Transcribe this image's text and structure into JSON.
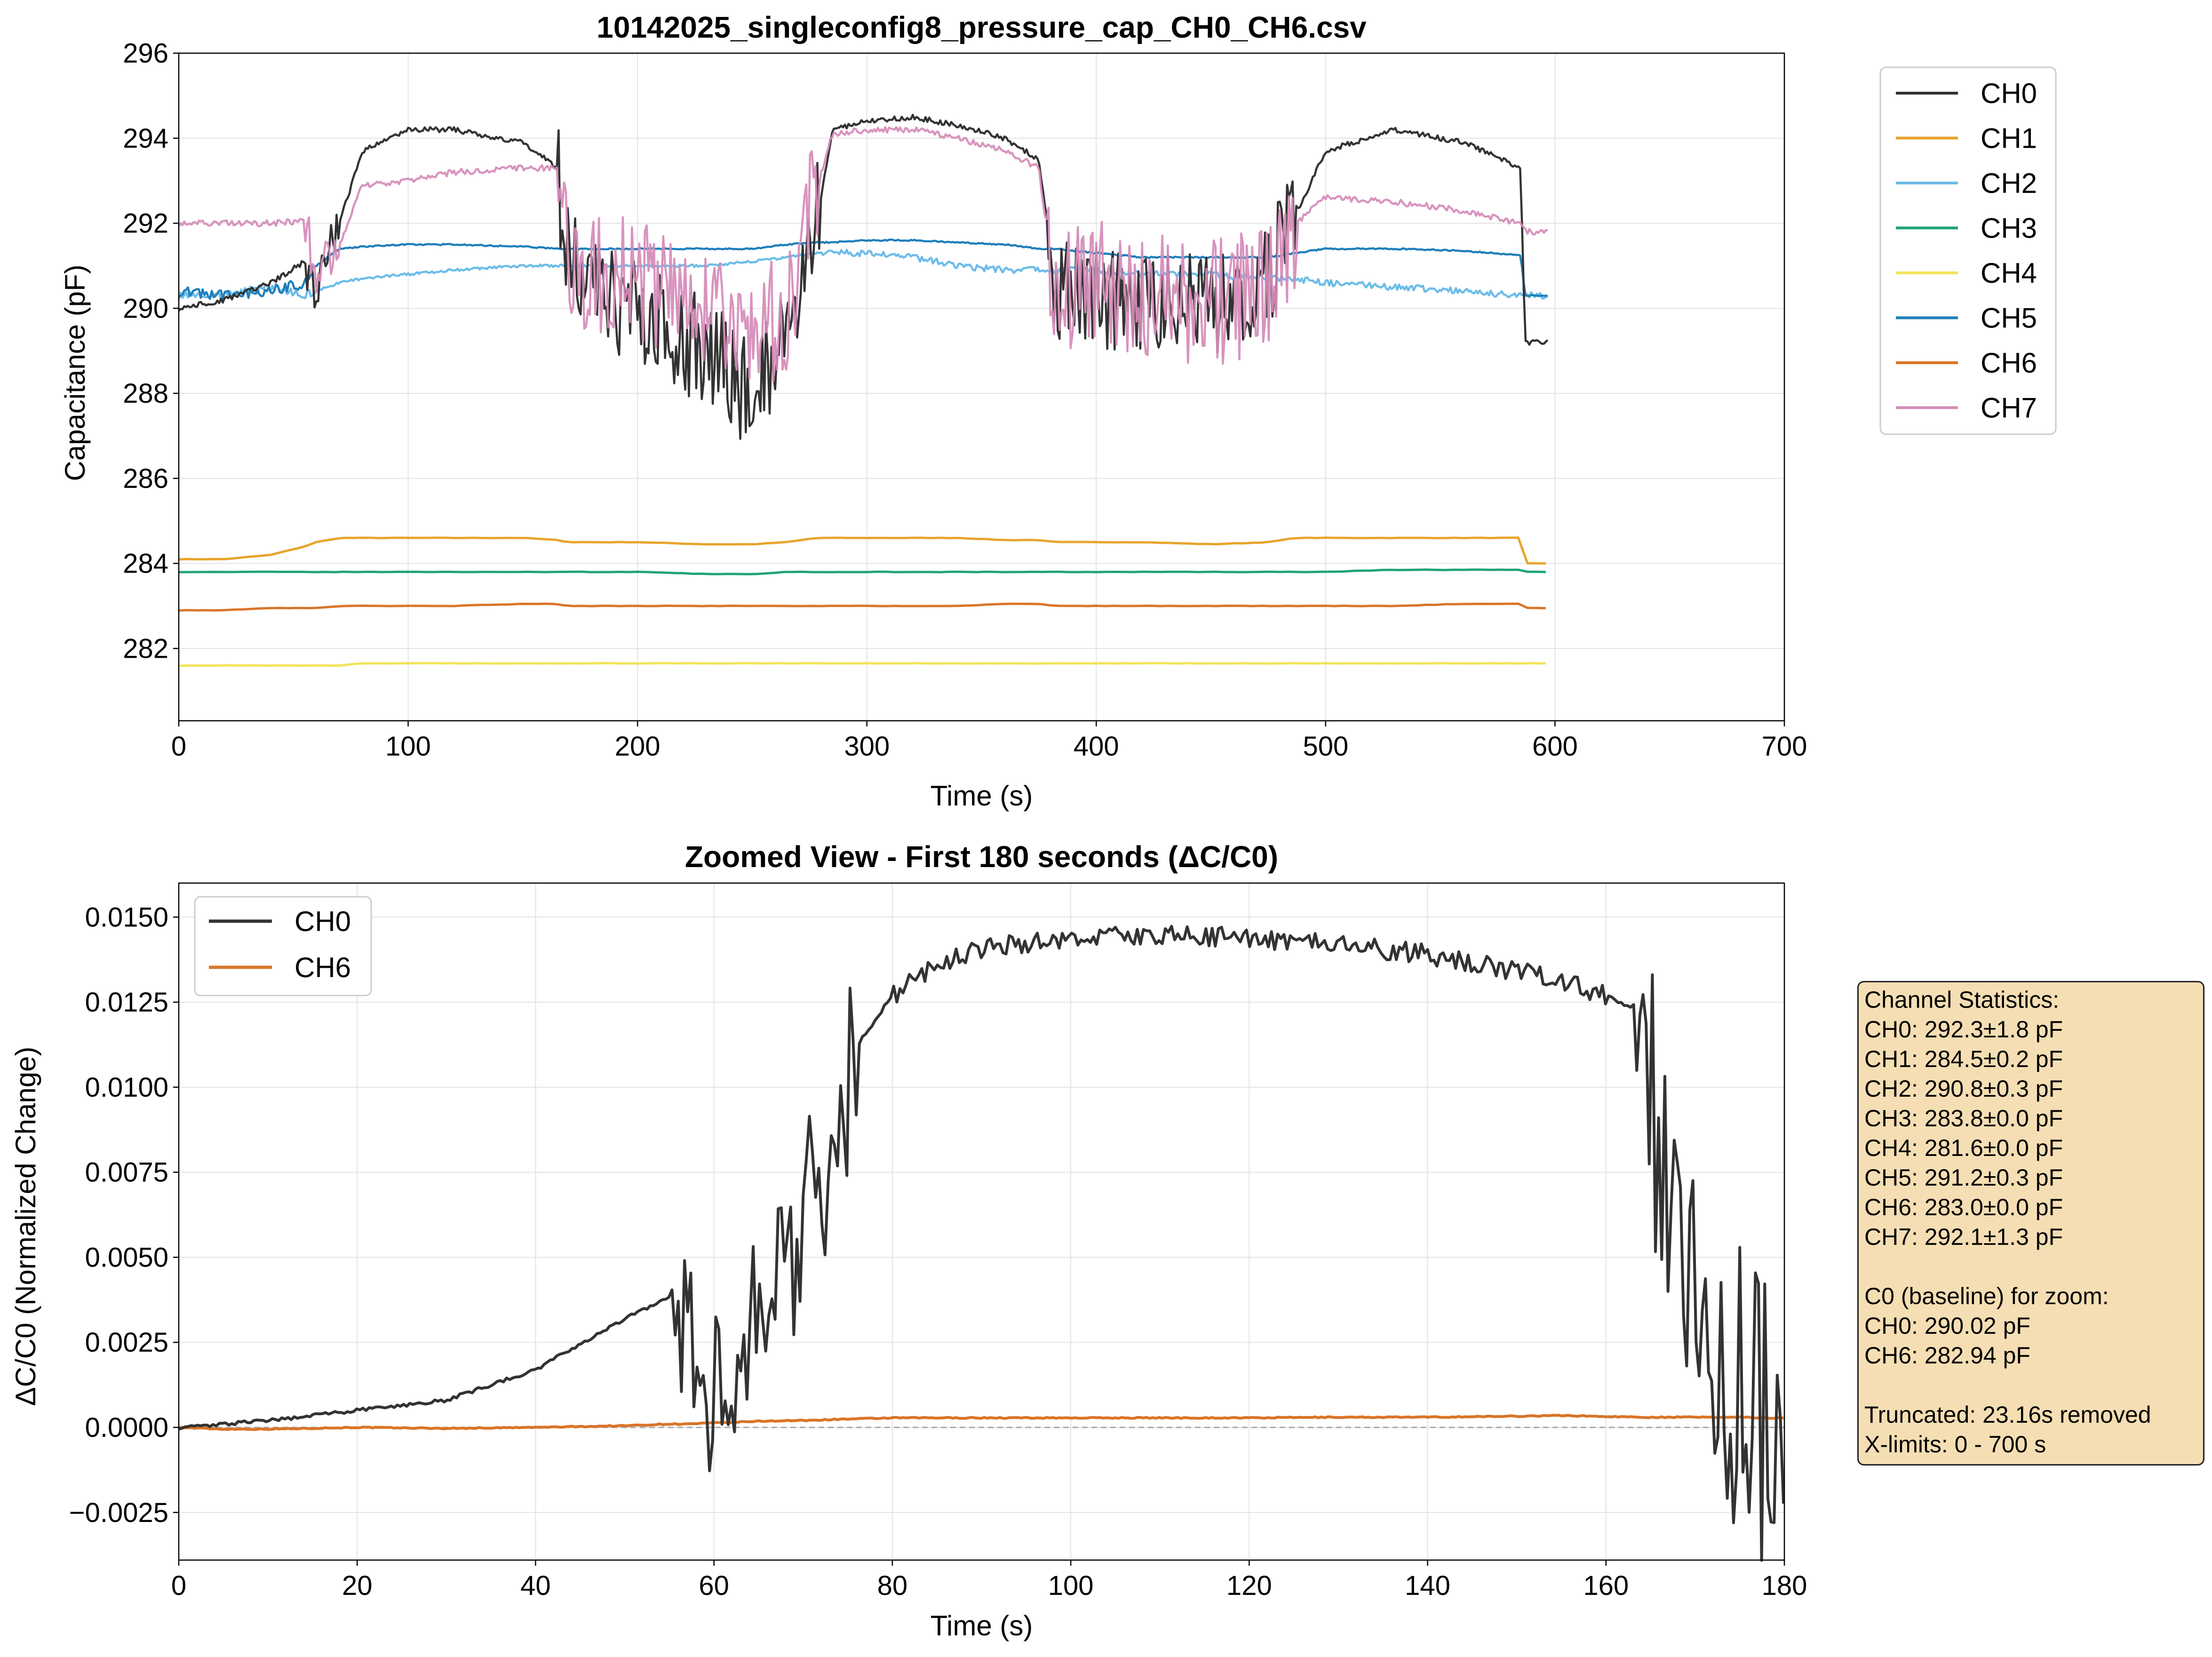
{
  "colors": {
    "CH0": "#333333",
    "CH1": "#E8A42C",
    "CH2": "#6CBCE8",
    "CH3": "#22A27A",
    "CH4": "#F2E45A",
    "CH5": "#1F7FBB",
    "CH6": "#D97528",
    "CH7": "#D58BB8"
  },
  "chart_data": [
    {
      "type": "line",
      "title": "10142025_singleconfig8_pressure_cap_CH0_CH6.csv",
      "xlabel": "Time (s)",
      "ylabel": "Capacitance (pF)",
      "xlim": [
        0,
        700
      ],
      "ylim": [
        280.3,
        296
      ],
      "xticks": [
        "0",
        "100",
        "200",
        "300",
        "400",
        "500",
        "600",
        "700"
      ],
      "yticks": [
        "282",
        "284",
        "286",
        "288",
        "290",
        "292",
        "294",
        "296"
      ],
      "grid": true,
      "legend": "outside upper right",
      "x": [
        0,
        20,
        40,
        55,
        60,
        70,
        80,
        100,
        120,
        150,
        165,
        170,
        200,
        230,
        250,
        265,
        278,
        285,
        300,
        320,
        340,
        360,
        375,
        382,
        400,
        420,
        450,
        475,
        487,
        500,
        530,
        560,
        585,
        587,
        597
      ],
      "series": [
        {
          "name": "CH0",
          "values": [
            290.0,
            290.2,
            290.6,
            291.1,
            290.4,
            292.0,
            293.7,
            294.2,
            294.2,
            293.9,
            293.3,
            291.0,
            289.8,
            289.0,
            287.9,
            289.6,
            292.0,
            294.2,
            294.4,
            294.5,
            294.3,
            294.0,
            293.5,
            290.5,
            290.2,
            290.0,
            290.2,
            290.7,
            292.2,
            293.7,
            294.2,
            293.9,
            293.3,
            289.2,
            289.2
          ]
        },
        {
          "name": "CH1",
          "values": [
            284.1,
            284.1,
            284.2,
            284.4,
            284.5,
            284.6,
            284.6,
            284.6,
            284.6,
            284.6,
            284.55,
            284.5,
            284.5,
            284.45,
            284.45,
            284.5,
            284.6,
            284.6,
            284.6,
            284.6,
            284.6,
            284.55,
            284.55,
            284.5,
            284.5,
            284.5,
            284.45,
            284.5,
            284.6,
            284.6,
            284.6,
            284.6,
            284.6,
            284.0,
            284.0
          ]
        },
        {
          "name": "CH2",
          "values": [
            290.3,
            290.3,
            290.5,
            290.3,
            290.4,
            290.6,
            290.7,
            290.8,
            290.9,
            291.0,
            291.0,
            291.0,
            291.0,
            291.0,
            291.1,
            291.2,
            291.3,
            291.3,
            291.3,
            291.2,
            291.0,
            290.9,
            290.9,
            290.9,
            290.9,
            290.8,
            290.8,
            290.7,
            290.7,
            290.6,
            290.5,
            290.4,
            290.3,
            290.3,
            290.3
          ]
        },
        {
          "name": "CH3",
          "values": [
            283.8,
            283.8,
            283.8,
            283.8,
            283.8,
            283.8,
            283.8,
            283.8,
            283.8,
            283.8,
            283.8,
            283.8,
            283.8,
            283.75,
            283.75,
            283.8,
            283.8,
            283.8,
            283.8,
            283.8,
            283.8,
            283.8,
            283.8,
            283.8,
            283.8,
            283.8,
            283.8,
            283.8,
            283.8,
            283.8,
            283.85,
            283.85,
            283.85,
            283.8,
            283.8
          ]
        },
        {
          "name": "CH4",
          "values": [
            281.6,
            281.6,
            281.6,
            281.6,
            281.6,
            281.6,
            281.65,
            281.65,
            281.65,
            281.65,
            281.65,
            281.65,
            281.65,
            281.65,
            281.65,
            281.65,
            281.65,
            281.65,
            281.65,
            281.65,
            281.65,
            281.65,
            281.65,
            281.65,
            281.65,
            281.65,
            281.65,
            281.65,
            281.65,
            281.65,
            281.65,
            281.65,
            281.65,
            281.65,
            281.65
          ]
        },
        {
          "name": "CH5",
          "values": [
            290.4,
            290.3,
            290.4,
            290.6,
            291.0,
            291.4,
            291.45,
            291.5,
            291.5,
            291.45,
            291.4,
            291.4,
            291.4,
            291.4,
            291.4,
            291.5,
            291.55,
            291.55,
            291.6,
            291.6,
            291.55,
            291.5,
            291.4,
            291.4,
            291.3,
            291.2,
            291.2,
            291.2,
            291.3,
            291.4,
            291.4,
            291.35,
            291.25,
            290.3,
            290.3
          ]
        },
        {
          "name": "CH6",
          "values": [
            282.9,
            282.9,
            282.95,
            282.95,
            282.95,
            283.0,
            283.0,
            283.0,
            283.0,
            283.05,
            283.05,
            283.0,
            283.0,
            283.0,
            283.0,
            283.0,
            283.0,
            283.0,
            283.0,
            283.0,
            283.0,
            283.05,
            283.05,
            283.0,
            283.0,
            283.0,
            283.0,
            283.0,
            283.0,
            283.0,
            283.0,
            283.05,
            283.05,
            282.95,
            282.95
          ]
        },
        {
          "name": "CH7",
          "values": [
            292.0,
            292.0,
            292.0,
            292.05,
            290.8,
            291.5,
            292.9,
            293.0,
            293.2,
            293.3,
            293.3,
            290.8,
            290.6,
            290.0,
            289.4,
            289.8,
            292.8,
            294.1,
            294.2,
            294.2,
            294.0,
            293.7,
            293.3,
            290.2,
            290.8,
            290.3,
            290.1,
            290.5,
            292.0,
            292.6,
            292.5,
            292.3,
            292.0,
            291.8,
            291.8
          ]
        }
      ]
    },
    {
      "type": "line",
      "title": "Zoomed View - First 180 seconds (ΔC/C0)",
      "xlabel": "Time (s)",
      "ylabel": "ΔC/C0 (Normalized Change)",
      "xlim": [
        0,
        180
      ],
      "ylim": [
        -0.0039,
        0.016
      ],
      "xticks": [
        "0",
        "20",
        "40",
        "60",
        "80",
        "100",
        "120",
        "140",
        "160",
        "180"
      ],
      "yticks": [
        "−0.0025",
        "0.0000",
        "0.0025",
        "0.0050",
        "0.0075",
        "0.0100",
        "0.0125",
        "0.0150"
      ],
      "grid": true,
      "legend": "upper left",
      "x": [
        0,
        5,
        10,
        20,
        30,
        40,
        50,
        55,
        57,
        59,
        62,
        65,
        68,
        70,
        72,
        74,
        76,
        80,
        85,
        90,
        100,
        110,
        120,
        130,
        140,
        150,
        155,
        160,
        164,
        166,
        168,
        170,
        172,
        175,
        178,
        180
      ],
      "series": [
        {
          "name": "CH0",
          "values": [
            0.0,
            0.0001,
            0.0002,
            0.0005,
            0.0008,
            0.0017,
            0.0032,
            0.0038,
            0.0028,
            0.001,
            0.0018,
            0.003,
            0.0045,
            0.006,
            0.0075,
            0.0085,
            0.0112,
            0.0127,
            0.0136,
            0.0141,
            0.0144,
            0.0145,
            0.0144,
            0.0142,
            0.0139,
            0.0134,
            0.0131,
            0.0127,
            0.0122,
            0.008,
            0.006,
            0.004,
            0.001,
            0.0008,
            0.0005,
            0.0015
          ]
        },
        {
          "name": "CH6",
          "values": [
            0.0,
            -5e-05,
            -5e-05,
            0.0,
            -3e-05,
            0.0,
            5e-05,
            0.0001,
            0.0001,
            0.00012,
            0.00015,
            0.00018,
            0.0002,
            0.0002,
            0.00022,
            0.00024,
            0.00025,
            0.00028,
            0.00028,
            0.00028,
            0.00028,
            0.00028,
            0.00028,
            0.0003,
            0.0003,
            0.00033,
            0.00035,
            0.00032,
            0.0003,
            0.0003,
            0.0003,
            0.0003,
            0.0003,
            0.0003,
            0.00028,
            0.00028
          ]
        }
      ]
    }
  ],
  "stats_box": [
    "Channel Statistics:",
    "CH0: 292.3±1.8 pF",
    "CH1: 284.5±0.2 pF",
    "CH2: 290.8±0.3 pF",
    "CH3: 283.8±0.0 pF",
    "CH4: 281.6±0.0 pF",
    "CH5: 291.2±0.3 pF",
    "CH6: 283.0±0.0 pF",
    "CH7: 292.1±1.3 pF",
    "",
    "C0 (baseline) for zoom:",
    "CH0: 290.02 pF",
    "CH6: 282.94 pF",
    "",
    "Truncated: 23.16s removed",
    "X-limits: 0 - 700 s"
  ]
}
